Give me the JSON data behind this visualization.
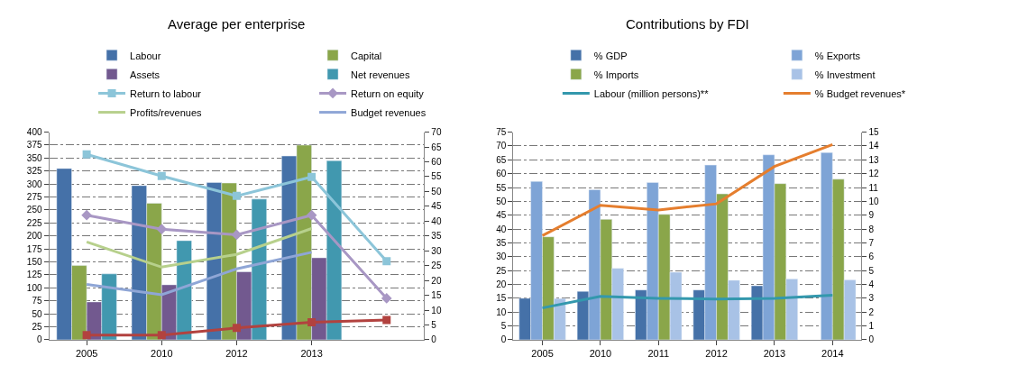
{
  "chart_data": [
    {
      "type": "bar",
      "title": "Average per enterprise",
      "categories": [
        "2005",
        "2010",
        "2012",
        "2013",
        null
      ],
      "ylim": [
        0,
        400
      ],
      "yticks": [
        0,
        25,
        50,
        75,
        100,
        125,
        150,
        175,
        200,
        225,
        250,
        275,
        300,
        325,
        350,
        375,
        400
      ],
      "y2lim": [
        0,
        70
      ],
      "y2ticks": [
        0,
        5,
        10,
        15,
        20,
        25,
        30,
        35,
        40,
        45,
        50,
        55,
        60,
        65,
        70
      ],
      "grid": "y",
      "legend": "top",
      "series": [
        {
          "name": "Labour",
          "color": "#4571a8",
          "values": [
            330,
            297,
            303,
            354,
            null
          ]
        },
        {
          "name": "Capital",
          "color": "#8aa64a",
          "values": [
            143,
            263,
            302,
            375,
            null
          ]
        },
        {
          "name": "Assets",
          "color": "#72598f",
          "values": [
            73,
            106,
            131,
            158,
            null
          ]
        },
        {
          "name": "Net revenues",
          "color": "#4198af",
          "values": [
            127,
            191,
            271,
            345,
            null
          ]
        },
        {
          "name": "Return to labour",
          "type": "line",
          "axis": "y2",
          "marker": "square",
          "color": "#8cc5d9",
          "values": [
            62.5,
            55.2,
            48.5,
            54.9,
            26.5
          ]
        },
        {
          "name": "Return on equity",
          "type": "line",
          "axis": "y2",
          "marker": "diamond",
          "color": "#a897c4",
          "values": [
            42,
            37.3,
            35.4,
            42,
            14
          ]
        },
        {
          "name": "Profits/revenues",
          "type": "line",
          "axis": "y2",
          "marker": "none",
          "color": "#b7d08c",
          "values": [
            33,
            24.5,
            28.8,
            37.5,
            null
          ]
        },
        {
          "name": "Budget revenues",
          "type": "line",
          "axis": "y2",
          "marker": "none",
          "color": "#8fa6d6",
          "values": [
            18.7,
            15.2,
            23.9,
            29.5,
            null
          ]
        },
        {
          "type": "line",
          "axis": "y2",
          "marker": "square",
          "color": "#b2423f",
          "values": [
            1.6,
            1.6,
            4.0,
            5.9,
            6.7
          ]
        }
      ]
    },
    {
      "type": "bar",
      "title": "Contributions by FDI",
      "categories": [
        "2005",
        "2010",
        "2011",
        "2012",
        "2013",
        "2014"
      ],
      "ylim": [
        0,
        75
      ],
      "yticks": [
        0,
        5,
        10,
        15,
        20,
        25,
        30,
        35,
        40,
        45,
        50,
        55,
        60,
        65,
        70,
        75
      ],
      "y2lim": [
        0,
        15
      ],
      "y2ticks": [
        0,
        1,
        2,
        3,
        4,
        5,
        6,
        7,
        8,
        9,
        10,
        11,
        12,
        13,
        14,
        15
      ],
      "grid": "y",
      "legend": "top",
      "series": [
        {
          "name": "% GDP",
          "color": "#4571a8",
          "values": [
            15,
            17.5,
            18,
            18,
            19.5,
            null
          ]
        },
        {
          "name": "% Exports",
          "color": "#7ea4d6",
          "values": [
            57.2,
            54.2,
            56.8,
            63.1,
            66.8,
            67.6
          ]
        },
        {
          "name": "% Imports",
          "color": "#8aa64a",
          "values": [
            37.2,
            43.5,
            45.3,
            52.7,
            56.4,
            58
          ]
        },
        {
          "name": "% Investment",
          "color": "#a8c2e6",
          "values": [
            14.9,
            25.8,
            24.4,
            21.5,
            22,
            21.6
          ]
        },
        {
          "name": "Labour (million persons)**",
          "type": "line",
          "axis": "y2",
          "marker": "none",
          "color": "#3398ad",
          "values": [
            2.3,
            3.14,
            3.0,
            2.94,
            3.0,
            3.22
          ]
        },
        {
          "name": "% Budget revenues*",
          "type": "line",
          "marker": "none",
          "color": "#e57e2e",
          "values": [
            37.6,
            48.6,
            46.9,
            49.1,
            62.6,
            70.5
          ]
        }
      ]
    }
  ]
}
